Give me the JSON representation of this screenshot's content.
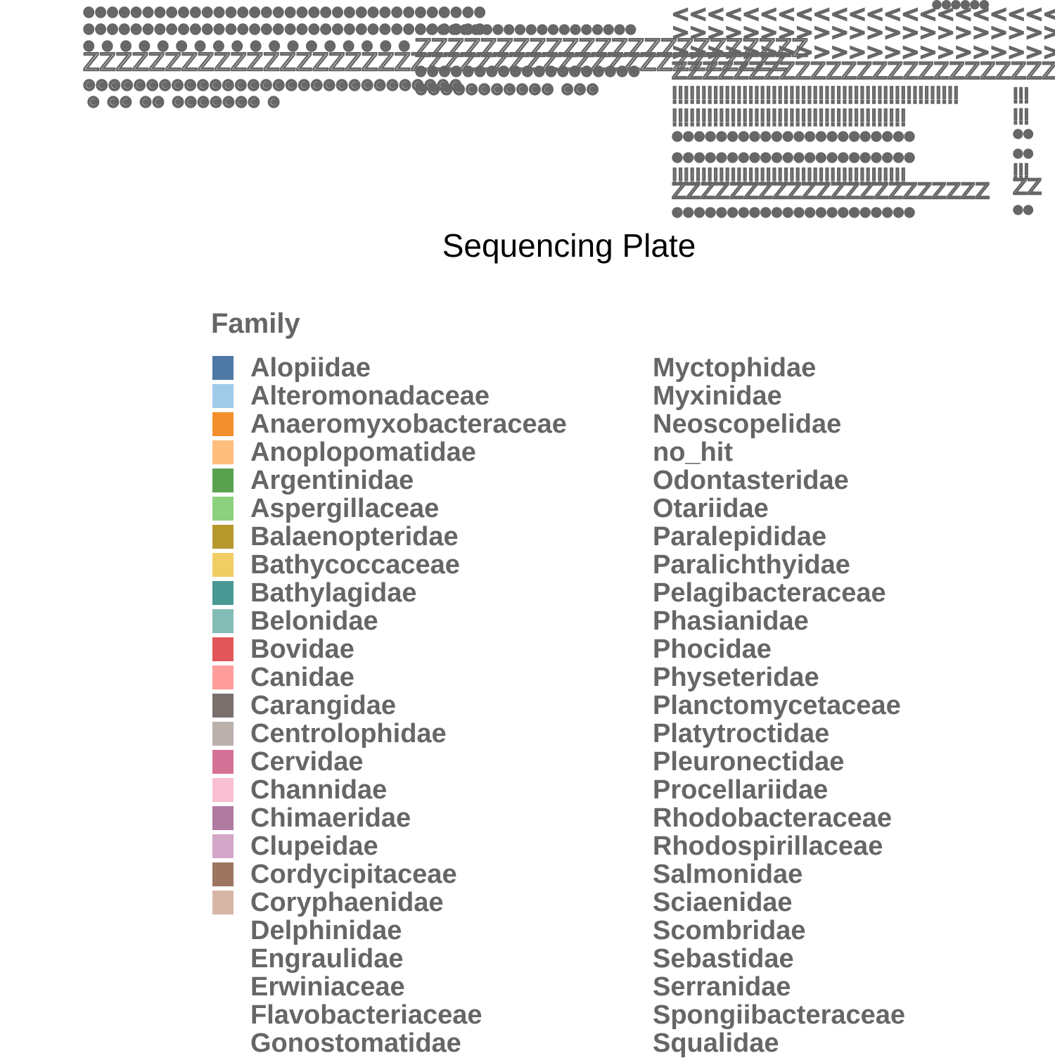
{
  "chart_data": {
    "type": "bar",
    "xlabel": "Sequencing Plate",
    "tick_labels_note": "",
    "legend": {
      "title": "Family",
      "placement": "bottom",
      "entries": [
        {
          "name": "Alopiidae",
          "color": "#4E79A7"
        },
        {
          "name": "Alteromonadaceae",
          "color": "#A0CBE8"
        },
        {
          "name": "Anaeromyxobacteraceae",
          "color": "#F28E2B"
        },
        {
          "name": "Anoplopomatidae",
          "color": "#FFBE7D"
        },
        {
          "name": "Argentinidae",
          "color": "#59A14F"
        },
        {
          "name": "Aspergillaceae",
          "color": "#8CD17D"
        },
        {
          "name": "Balaenopteridae",
          "color": "#B6992D"
        },
        {
          "name": "Bathycoccaceae",
          "color": "#F1CE63"
        },
        {
          "name": "Bathylagidae",
          "color": "#499894"
        },
        {
          "name": "Belonidae",
          "color": "#86BCB6"
        },
        {
          "name": "Bovidae",
          "color": "#E15759"
        },
        {
          "name": "Canidae",
          "color": "#FF9D9A"
        },
        {
          "name": "Carangidae",
          "color": "#79706E"
        },
        {
          "name": "Centrolophidae",
          "color": "#BAB0AC"
        },
        {
          "name": "Cervidae",
          "color": "#D37295"
        },
        {
          "name": "Channidae",
          "color": "#FABFD2"
        },
        {
          "name": "Chimaeridae",
          "color": "#B07AA1"
        },
        {
          "name": "Clupeidae",
          "color": "#D4A6C8"
        },
        {
          "name": "Cordycipitaceae",
          "color": "#9D7660"
        },
        {
          "name": "Coryphaenidae",
          "color": "#D7B5A6"
        },
        {
          "name": "Delphinidae",
          "color": ""
        },
        {
          "name": "Engraulidae",
          "color": ""
        },
        {
          "name": "Erwiniaceae",
          "color": ""
        },
        {
          "name": "Flavobacteriaceae",
          "color": ""
        },
        {
          "name": "Gonostomatidae",
          "color": ""
        },
        {
          "name": "Myctophidae",
          "color": ""
        },
        {
          "name": "Myxinidae",
          "color": ""
        },
        {
          "name": "Neoscopelidae",
          "color": ""
        },
        {
          "name": "no_hit",
          "color": ""
        },
        {
          "name": "Odontasteridae",
          "color": ""
        },
        {
          "name": "Otariidae",
          "color": ""
        },
        {
          "name": "Paralepididae",
          "color": ""
        },
        {
          "name": "Paralichthyidae",
          "color": ""
        },
        {
          "name": "Pelagibacteraceae",
          "color": ""
        },
        {
          "name": "Phasianidae",
          "color": ""
        },
        {
          "name": "Phocidae",
          "color": ""
        },
        {
          "name": "Physeteridae",
          "color": ""
        },
        {
          "name": "Planctomycetaceae",
          "color": ""
        },
        {
          "name": "Platytroctidae",
          "color": ""
        },
        {
          "name": "Pleuronectidae",
          "color": ""
        },
        {
          "name": "Procellariidae",
          "color": ""
        },
        {
          "name": "Rhodobacteraceae",
          "color": ""
        },
        {
          "name": "Rhodospirillaceae",
          "color": ""
        },
        {
          "name": "Salmonidae",
          "color": ""
        },
        {
          "name": "Sciaenidae",
          "color": ""
        },
        {
          "name": "Scombridae",
          "color": ""
        },
        {
          "name": "Sebastidae",
          "color": ""
        },
        {
          "name": "Serranidae",
          "color": ""
        },
        {
          "name": "Spongiibacteraceae",
          "color": ""
        },
        {
          "name": "Squalidae",
          "color": ""
        }
      ]
    }
  }
}
